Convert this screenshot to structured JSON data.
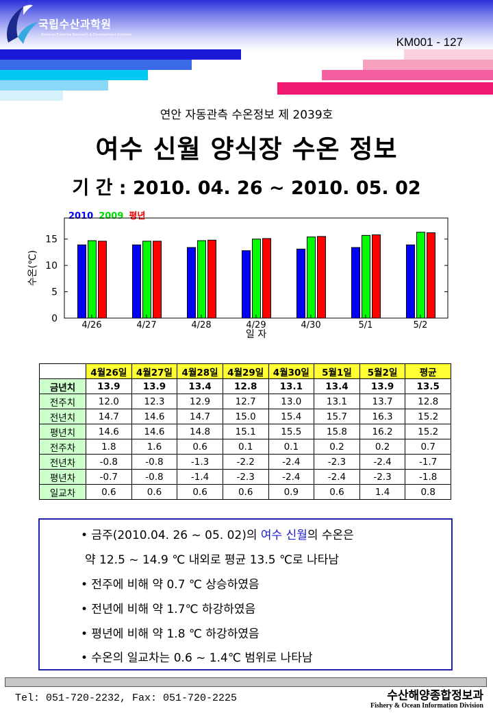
{
  "header": {
    "org_name_ko": "국립수산과학원",
    "org_name_en": "National Fisheries Research & Development Institute",
    "doc_number": "KM001 - 127"
  },
  "report": {
    "subtitle": "연안 자동관측 수온정보 제 2039호",
    "title": "여수 신월 양식장 수온 정보",
    "period": "기 간 : 2010. 04. 26 ~ 2010. 05. 02"
  },
  "chart_data": {
    "type": "bar",
    "title": "",
    "xlabel": "일 자",
    "ylabel": "수온(℃)",
    "ylim": [
      0,
      19
    ],
    "yticks": [
      0,
      5,
      10,
      15
    ],
    "grid": false,
    "legend_position": "top-left",
    "categories": [
      "4/26",
      "4/27",
      "4/28",
      "4/29",
      "4/30",
      "5/1",
      "5/2"
    ],
    "series": [
      {
        "name": "2010",
        "color": "#0000ff",
        "values": [
          13.9,
          13.9,
          13.4,
          12.8,
          13.1,
          13.4,
          13.9
        ]
      },
      {
        "name": "2009",
        "color": "#00ff00",
        "values": [
          14.7,
          14.6,
          14.7,
          15.0,
          15.4,
          15.7,
          16.3
        ]
      },
      {
        "name": "평년",
        "color": "#ff0000",
        "values": [
          14.6,
          14.6,
          14.8,
          15.1,
          15.5,
          15.8,
          16.2
        ]
      }
    ]
  },
  "table": {
    "columns": [
      "4월26일",
      "4월27일",
      "4월28일",
      "4월29일",
      "4월30일",
      "5월1일",
      "5월2일",
      "평균"
    ],
    "rows": [
      {
        "label": "금년치",
        "values": [
          "13.9",
          "13.9",
          "13.4",
          "12.8",
          "13.1",
          "13.4",
          "13.9",
          "13.5"
        ]
      },
      {
        "label": "전주치",
        "values": [
          "12.0",
          "12.3",
          "12.9",
          "12.7",
          "13.0",
          "13.1",
          "13.7",
          "12.8"
        ]
      },
      {
        "label": "전년치",
        "values": [
          "14.7",
          "14.6",
          "14.7",
          "15.0",
          "15.4",
          "15.7",
          "16.3",
          "15.2"
        ]
      },
      {
        "label": "평년치",
        "values": [
          "14.6",
          "14.6",
          "14.8",
          "15.1",
          "15.5",
          "15.8",
          "16.2",
          "15.2"
        ]
      },
      {
        "label": "전주차",
        "values": [
          "1.8",
          "1.6",
          "0.6",
          "0.1",
          "0.1",
          "0.2",
          "0.2",
          "0.7"
        ]
      },
      {
        "label": "전년차",
        "values": [
          "-0.8",
          "-0.8",
          "-1.3",
          "-2.2",
          "-2.4",
          "-2.3",
          "-2.4",
          "-1.7"
        ]
      },
      {
        "label": "평년차",
        "values": [
          "-0.7",
          "-0.8",
          "-1.4",
          "-2.3",
          "-2.4",
          "-2.4",
          "-2.3",
          "-1.8"
        ]
      },
      {
        "label": "일교차",
        "values": [
          "0.6",
          "0.6",
          "0.6",
          "0.6",
          "0.9",
          "0.6",
          "1.4",
          "0.8"
        ]
      }
    ]
  },
  "summary": {
    "l1_pre": "• 금주(2010.04. 26 ~ 05. 02)의 ",
    "l1_hl": "여수 신월",
    "l1_post": "의 수온은",
    "l2": "약 12.5 ~ 14.9 ℃ 내외로 평균 13.5 ℃로 나타남",
    "l3": "• 전주에 비해 약 0.7 ℃ 상승하였음",
    "l4": "• 전년에 비해 약 1.7℃ 하강하였음",
    "l5": "• 평년에 비해 약 1.8 ℃ 하강하였음",
    "l6": "• 수온의 일교차는 0.6 ~ 1.4℃ 범위로 나타남"
  },
  "footer": {
    "contact": "Tel: 051-720-2232,  Fax: 051-720-2225",
    "division_ko": "수산해양종합정보과",
    "division_en": "Fishery & Ocean Information Division"
  },
  "colors": {
    "accent_blue": "#2020d0",
    "accent_cyan": "#00c8f0",
    "accent_pink": "#f01870",
    "table_header": "#ffff33",
    "row_header": "#ccffcc"
  }
}
